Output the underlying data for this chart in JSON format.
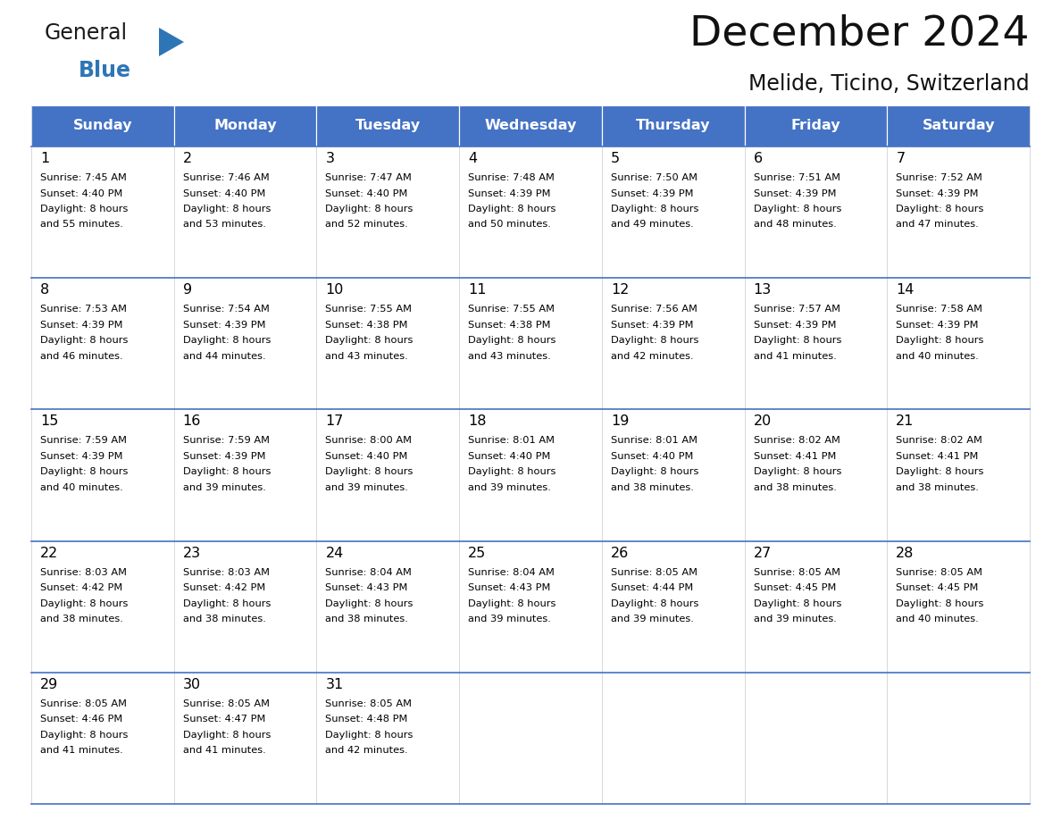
{
  "title": "December 2024",
  "subtitle": "Melide, Ticino, Switzerland",
  "header_color": "#4472C4",
  "header_text_color": "#FFFFFF",
  "cell_bg_color": "#FFFFFF",
  "border_color": "#4472C4",
  "text_color": "#000000",
  "days_of_week": [
    "Sunday",
    "Monday",
    "Tuesday",
    "Wednesday",
    "Thursday",
    "Friday",
    "Saturday"
  ],
  "weeks": [
    [
      {
        "day": "1",
        "sunrise": "7:45 AM",
        "sunset": "4:40 PM",
        "daylight_line1": "Daylight: 8 hours",
        "daylight_line2": "and 55 minutes."
      },
      {
        "day": "2",
        "sunrise": "7:46 AM",
        "sunset": "4:40 PM",
        "daylight_line1": "Daylight: 8 hours",
        "daylight_line2": "and 53 minutes."
      },
      {
        "day": "3",
        "sunrise": "7:47 AM",
        "sunset": "4:40 PM",
        "daylight_line1": "Daylight: 8 hours",
        "daylight_line2": "and 52 minutes."
      },
      {
        "day": "4",
        "sunrise": "7:48 AM",
        "sunset": "4:39 PM",
        "daylight_line1": "Daylight: 8 hours",
        "daylight_line2": "and 50 minutes."
      },
      {
        "day": "5",
        "sunrise": "7:50 AM",
        "sunset": "4:39 PM",
        "daylight_line1": "Daylight: 8 hours",
        "daylight_line2": "and 49 minutes."
      },
      {
        "day": "6",
        "sunrise": "7:51 AM",
        "sunset": "4:39 PM",
        "daylight_line1": "Daylight: 8 hours",
        "daylight_line2": "and 48 minutes."
      },
      {
        "day": "7",
        "sunrise": "7:52 AM",
        "sunset": "4:39 PM",
        "daylight_line1": "Daylight: 8 hours",
        "daylight_line2": "and 47 minutes."
      }
    ],
    [
      {
        "day": "8",
        "sunrise": "7:53 AM",
        "sunset": "4:39 PM",
        "daylight_line1": "Daylight: 8 hours",
        "daylight_line2": "and 46 minutes."
      },
      {
        "day": "9",
        "sunrise": "7:54 AM",
        "sunset": "4:39 PM",
        "daylight_line1": "Daylight: 8 hours",
        "daylight_line2": "and 44 minutes."
      },
      {
        "day": "10",
        "sunrise": "7:55 AM",
        "sunset": "4:38 PM",
        "daylight_line1": "Daylight: 8 hours",
        "daylight_line2": "and 43 minutes."
      },
      {
        "day": "11",
        "sunrise": "7:55 AM",
        "sunset": "4:38 PM",
        "daylight_line1": "Daylight: 8 hours",
        "daylight_line2": "and 43 minutes."
      },
      {
        "day": "12",
        "sunrise": "7:56 AM",
        "sunset": "4:39 PM",
        "daylight_line1": "Daylight: 8 hours",
        "daylight_line2": "and 42 minutes."
      },
      {
        "day": "13",
        "sunrise": "7:57 AM",
        "sunset": "4:39 PM",
        "daylight_line1": "Daylight: 8 hours",
        "daylight_line2": "and 41 minutes."
      },
      {
        "day": "14",
        "sunrise": "7:58 AM",
        "sunset": "4:39 PM",
        "daylight_line1": "Daylight: 8 hours",
        "daylight_line2": "and 40 minutes."
      }
    ],
    [
      {
        "day": "15",
        "sunrise": "7:59 AM",
        "sunset": "4:39 PM",
        "daylight_line1": "Daylight: 8 hours",
        "daylight_line2": "and 40 minutes."
      },
      {
        "day": "16",
        "sunrise": "7:59 AM",
        "sunset": "4:39 PM",
        "daylight_line1": "Daylight: 8 hours",
        "daylight_line2": "and 39 minutes."
      },
      {
        "day": "17",
        "sunrise": "8:00 AM",
        "sunset": "4:40 PM",
        "daylight_line1": "Daylight: 8 hours",
        "daylight_line2": "and 39 minutes."
      },
      {
        "day": "18",
        "sunrise": "8:01 AM",
        "sunset": "4:40 PM",
        "daylight_line1": "Daylight: 8 hours",
        "daylight_line2": "and 39 minutes."
      },
      {
        "day": "19",
        "sunrise": "8:01 AM",
        "sunset": "4:40 PM",
        "daylight_line1": "Daylight: 8 hours",
        "daylight_line2": "and 38 minutes."
      },
      {
        "day": "20",
        "sunrise": "8:02 AM",
        "sunset": "4:41 PM",
        "daylight_line1": "Daylight: 8 hours",
        "daylight_line2": "and 38 minutes."
      },
      {
        "day": "21",
        "sunrise": "8:02 AM",
        "sunset": "4:41 PM",
        "daylight_line1": "Daylight: 8 hours",
        "daylight_line2": "and 38 minutes."
      }
    ],
    [
      {
        "day": "22",
        "sunrise": "8:03 AM",
        "sunset": "4:42 PM",
        "daylight_line1": "Daylight: 8 hours",
        "daylight_line2": "and 38 minutes."
      },
      {
        "day": "23",
        "sunrise": "8:03 AM",
        "sunset": "4:42 PM",
        "daylight_line1": "Daylight: 8 hours",
        "daylight_line2": "and 38 minutes."
      },
      {
        "day": "24",
        "sunrise": "8:04 AM",
        "sunset": "4:43 PM",
        "daylight_line1": "Daylight: 8 hours",
        "daylight_line2": "and 38 minutes."
      },
      {
        "day": "25",
        "sunrise": "8:04 AM",
        "sunset": "4:43 PM",
        "daylight_line1": "Daylight: 8 hours",
        "daylight_line2": "and 39 minutes."
      },
      {
        "day": "26",
        "sunrise": "8:05 AM",
        "sunset": "4:44 PM",
        "daylight_line1": "Daylight: 8 hours",
        "daylight_line2": "and 39 minutes."
      },
      {
        "day": "27",
        "sunrise": "8:05 AM",
        "sunset": "4:45 PM",
        "daylight_line1": "Daylight: 8 hours",
        "daylight_line2": "and 39 minutes."
      },
      {
        "day": "28",
        "sunrise": "8:05 AM",
        "sunset": "4:45 PM",
        "daylight_line1": "Daylight: 8 hours",
        "daylight_line2": "and 40 minutes."
      }
    ],
    [
      {
        "day": "29",
        "sunrise": "8:05 AM",
        "sunset": "4:46 PM",
        "daylight_line1": "Daylight: 8 hours",
        "daylight_line2": "and 41 minutes."
      },
      {
        "day": "30",
        "sunrise": "8:05 AM",
        "sunset": "4:47 PM",
        "daylight_line1": "Daylight: 8 hours",
        "daylight_line2": "and 41 minutes."
      },
      {
        "day": "31",
        "sunrise": "8:05 AM",
        "sunset": "4:48 PM",
        "daylight_line1": "Daylight: 8 hours",
        "daylight_line2": "and 42 minutes."
      },
      null,
      null,
      null,
      null
    ]
  ],
  "logo_general_color": "#1a1a1a",
  "logo_blue_color": "#2E75B6",
  "logo_triangle_color": "#2E75B6",
  "fig_width": 11.88,
  "fig_height": 9.18,
  "dpi": 100
}
